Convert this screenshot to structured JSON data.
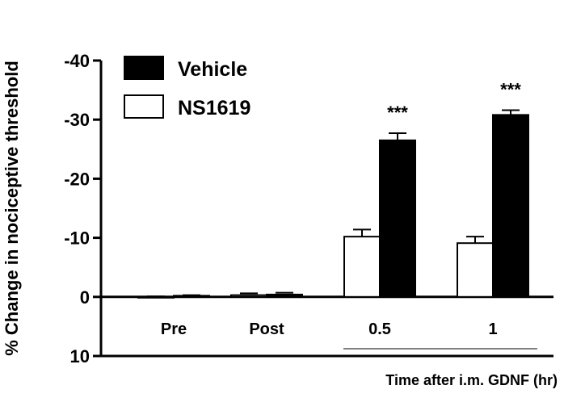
{
  "chart_data": {
    "type": "bar",
    "ylabel": "% Change in nociceptive threshold",
    "xlabel": "Time after i.m. GDNF (hr)",
    "categories": [
      "Pre",
      "Post",
      "0.5",
      "1"
    ],
    "ylim": [
      10,
      -40
    ],
    "y_ticks": [
      "-40",
      "-30",
      "-20",
      "-10",
      "0",
      "10"
    ],
    "y_tick_values": [
      -40,
      -30,
      -20,
      -10,
      0,
      10
    ],
    "legend_position": "top-left",
    "series": [
      {
        "name": "NS1619",
        "fill": "#ffffff",
        "values": [
          0,
          -0.3,
          -10.2,
          -9.1
        ],
        "errors": [
          0.1,
          0.3,
          1.2,
          1.1
        ]
      },
      {
        "name": "Vehicle",
        "fill": "#000000",
        "values": [
          -0.2,
          -0.4,
          -26.5,
          -30.8
        ],
        "errors": [
          0.1,
          0.3,
          1.2,
          0.8
        ]
      }
    ],
    "legend_order": [
      "Vehicle",
      "NS1619"
    ],
    "annotations": [
      {
        "category": "0.5",
        "text": "***"
      },
      {
        "category": "1",
        "text": "***"
      }
    ],
    "underline_categories": [
      "0.5",
      "1"
    ]
  }
}
